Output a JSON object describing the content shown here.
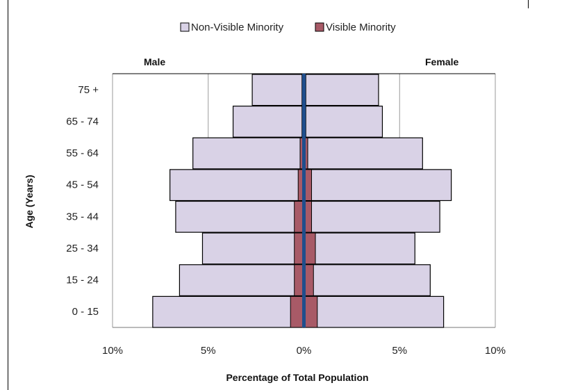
{
  "chart_data": {
    "type": "bar",
    "orientation": "horizontal-population-pyramid",
    "categories": [
      "0 - 15",
      "15 - 24",
      "25 - 34",
      "35 - 44",
      "45 - 54",
      "55 - 64",
      "65 - 74",
      "75 +"
    ],
    "series": [
      {
        "name": "Non-Visible Minority",
        "color": "#d9d2e6",
        "male": [
          7.9,
          6.5,
          5.3,
          6.7,
          7.0,
          5.8,
          3.7,
          2.7
        ],
        "female": [
          7.3,
          6.6,
          5.8,
          7.1,
          7.7,
          6.2,
          4.1,
          3.9
        ]
      },
      {
        "name": "Visible Minority",
        "color": "#a85a67",
        "male": [
          0.7,
          0.5,
          0.5,
          0.5,
          0.3,
          0.2,
          0.1,
          0.1
        ],
        "female": [
          0.7,
          0.5,
          0.6,
          0.4,
          0.4,
          0.2,
          0.1,
          0.1
        ]
      }
    ],
    "center_line_color": "#1f4e8c",
    "male_label": "Male",
    "female_label": "Female",
    "xlabel": "Percentage of Total Population",
    "ylabel": "Age (Years)",
    "xticks": [
      "10%",
      "5%",
      "0%",
      "5%",
      "10%"
    ],
    "xlim": [
      -10,
      10
    ],
    "grid": "vertical major gridlines",
    "legend_position": "top"
  }
}
